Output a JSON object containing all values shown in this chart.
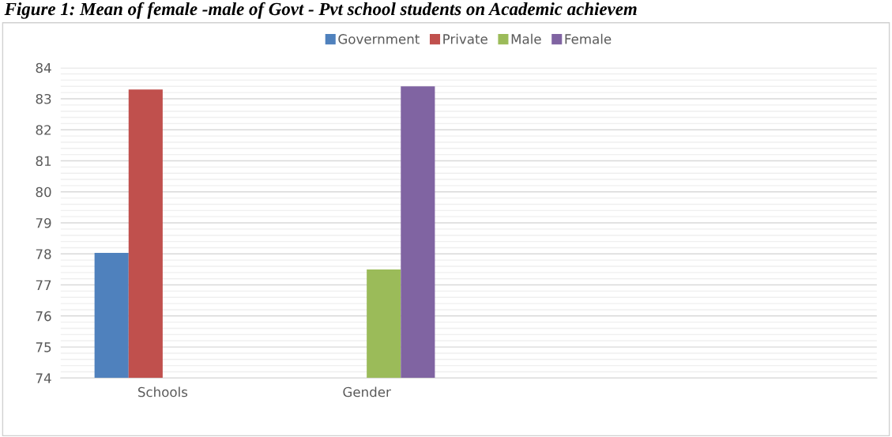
{
  "chart_data": {
    "type": "bar",
    "title": "Figure 1: Mean of female -male of Govt - Pvt school students on Academic achievem",
    "categories": [
      "Schools",
      "Gender",
      null,
      null
    ],
    "series": [
      {
        "name": "Government",
        "color": "#4f81bd",
        "values": [
          78.03,
          null,
          null,
          null
        ]
      },
      {
        "name": "Private",
        "color": "#c0504d",
        "values": [
          83.3,
          null,
          null,
          null
        ]
      },
      {
        "name": "Male",
        "color": "#9bbb59",
        "values": [
          null,
          77.5,
          null,
          null
        ]
      },
      {
        "name": "Female",
        "color": "#8064a2",
        "values": [
          null,
          83.4,
          null,
          null
        ]
      }
    ],
    "ylim": [
      74,
      84
    ],
    "yticks": [
      74,
      75,
      76,
      77,
      78,
      79,
      80,
      81,
      82,
      83,
      84
    ],
    "grid": "y",
    "legend": "top"
  }
}
